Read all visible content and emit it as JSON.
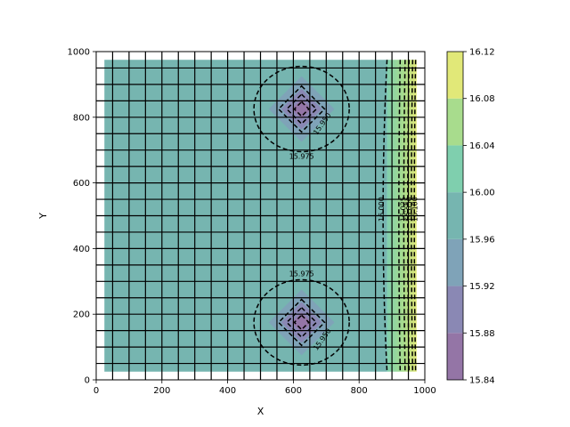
{
  "chart_data": {
    "type": "heatmap",
    "title": "",
    "xlabel": "X",
    "ylabel": "Y",
    "xlim": [
      0,
      1000
    ],
    "ylim": [
      0,
      1000
    ],
    "x_ticks": [
      "0",
      "200",
      "400",
      "600",
      "800",
      "1000"
    ],
    "y_ticks": [
      "0",
      "200",
      "400",
      "600",
      "800",
      "1000"
    ],
    "grid": "model grid lines every 50",
    "colorbar": {
      "levels": [
        15.84,
        15.88,
        15.92,
        15.96,
        16.0,
        16.04,
        16.08,
        16.12
      ],
      "tick_labels": [
        "15.84",
        "15.88",
        "15.92",
        "15.96",
        "16.00",
        "16.04",
        "16.08",
        "16.12"
      ],
      "colors": [
        "#9475a6",
        "#8a88b4",
        "#7fa3b8",
        "#76b5b0",
        "#7fcfae",
        "#a8dc8d",
        "#e1e878"
      ]
    },
    "wells": [
      {
        "x": 625,
        "y": 825,
        "min_head": 15.86
      },
      {
        "x": 625,
        "y": 175,
        "min_head": 15.86
      }
    ],
    "contour_labels": [
      {
        "text": "15.975",
        "x": 625,
        "y": 680
      },
      {
        "text": "15.950",
        "x": 688,
        "y": 780
      },
      {
        "text": "15.975",
        "x": 625,
        "y": 322
      },
      {
        "text": "15.950",
        "x": 688,
        "y": 123
      },
      {
        "text": "16.000",
        "x": 868,
        "y": 520
      },
      {
        "text": "16.025",
        "x": 935,
        "y": 520
      },
      {
        "text": "16.050",
        "x": 953,
        "y": 520
      },
      {
        "text": "16.100",
        "x": 970,
        "y": 520
      }
    ]
  }
}
